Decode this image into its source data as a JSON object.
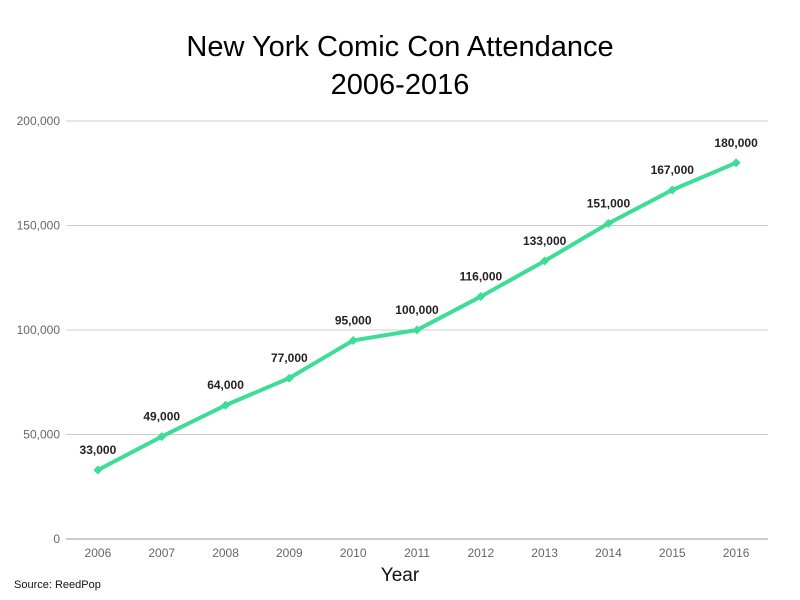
{
  "chart_data": {
    "type": "line",
    "title": "New York Comic Con Attendance",
    "subtitle": "2006-2016",
    "xlabel": "Year",
    "ylabel": "",
    "categories": [
      "2006",
      "2007",
      "2008",
      "2009",
      "2010",
      "2011",
      "2012",
      "2013",
      "2014",
      "2015",
      "2016"
    ],
    "series": [
      {
        "values": [
          33000,
          49000,
          64000,
          77000,
          95000,
          100000,
          116000,
          133000,
          151000,
          167000,
          180000
        ],
        "data_labels": [
          "33,000",
          "49,000",
          "64,000",
          "77,000",
          "95,000",
          "100,000",
          "116,000",
          "133,000",
          "151,000",
          "167,000",
          "180,000"
        ],
        "color": "#3ddc97"
      }
    ],
    "ylim": [
      0,
      200000
    ],
    "yticks": [
      0,
      50000,
      100000,
      150000,
      200000
    ],
    "ytick_labels": [
      "0",
      "50,000",
      "100,000",
      "150,000",
      "200,000"
    ],
    "grid": true,
    "legend": "none",
    "gridline_color": "#cccccc"
  },
  "source": "Source: ReedPop"
}
